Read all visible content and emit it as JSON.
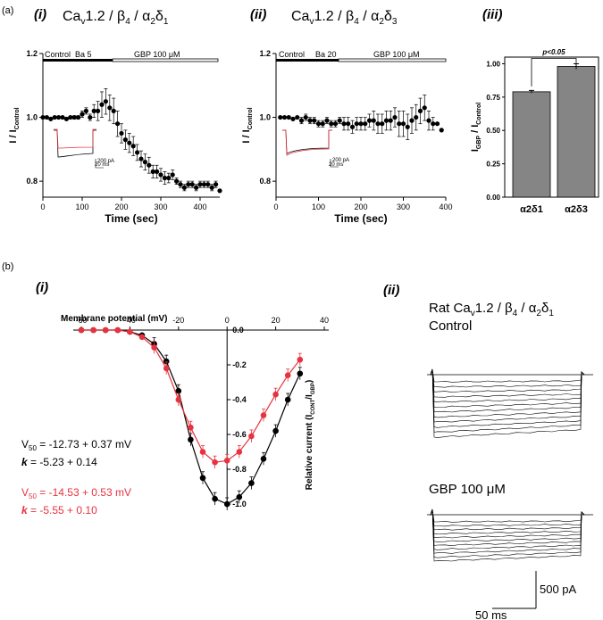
{
  "panel_labels": {
    "a": "(a)",
    "b": "(b)",
    "ai": "(i)",
    "aii": "(ii)",
    "aiii": "(iii)",
    "bi": "(i)",
    "bii": "(ii)"
  },
  "titles": {
    "ai_main": "Ca",
    "ai_sub": "v",
    "ai_rest": "1.2 / β",
    "ai_sub2": "4",
    "ai_rest2": " / α",
    "ai_sub3": "2",
    "ai_rest3": "δ",
    "ai_sub4": "1",
    "aii_main": "Ca",
    "aii_sub": "v",
    "aii_rest": "1.2 / β",
    "aii_sub2": "4",
    "aii_rest2": " / α",
    "aii_sub3": "2",
    "aii_rest3": "δ",
    "aii_sub4": "3",
    "bii_main": "Rat Ca",
    "bii_sub": "v",
    "bii_rest": "1.2 / β",
    "bii_sub2": "4",
    "bii_rest2": " / α",
    "bii_sub3": "2",
    "bii_rest3": "δ",
    "bii_sub4": "1"
  },
  "bars_ai": {
    "control": "Control",
    "ba": "Ba 5",
    "gbp": "GBP 100 μM"
  },
  "bars_aii": {
    "control": "Control",
    "ba": "Ba 20",
    "gbp": "GBP 100 μM"
  },
  "scale_labels": {
    "pa": "200 pA",
    "ms": "20 ms",
    "pa2": "500 pA",
    "ms2": "50 ms"
  },
  "bii_labels": {
    "control": "Control",
    "gbp": "GBP 100 μM"
  },
  "fit_text": {
    "black_v50": "V",
    "black_v50_sub": "50",
    "black_v50_val": " = -12.73 + 0.37  mV",
    "black_k": "k",
    "black_k_val": " =  -5.23 + 0.14",
    "red_v50": "V",
    "red_v50_sub": "50",
    "red_v50_val": " = -14.53 + 0.53  mV",
    "red_k": "k",
    "red_k_val": " = -5.55 + 0.10"
  },
  "colors": {
    "red": "#e8323f",
    "black": "#000000",
    "bar_gray": "#858585"
  },
  "chart_data": [
    {
      "type": "scatter",
      "xlabel": "Time (sec)",
      "ylabel": "I / I",
      "ylabel_sub": "Control",
      "xlim": [
        0,
        450
      ],
      "ylim": [
        0.75,
        1.2
      ],
      "xticks": [
        0,
        100,
        200,
        300,
        400
      ],
      "yticks": [
        0.8,
        1.0,
        1.2
      ],
      "x": [
        0,
        10,
        20,
        30,
        40,
        50,
        60,
        70,
        80,
        90,
        100,
        110,
        120,
        130,
        140,
        150,
        160,
        170,
        180,
        190,
        200,
        210,
        220,
        230,
        240,
        250,
        260,
        270,
        280,
        290,
        300,
        310,
        320,
        330,
        340,
        350,
        360,
        370,
        380,
        390,
        400,
        410,
        420,
        430,
        440,
        450
      ],
      "y": [
        1.0,
        1.0,
        0.995,
        1.0,
        1.0,
        1.0,
        0.995,
        1.0,
        1.0,
        1.0,
        1.01,
        1.02,
        1.0,
        1.02,
        1.02,
        1.04,
        1.05,
        1.03,
        1.02,
        0.98,
        0.95,
        0.93,
        0.92,
        0.91,
        0.89,
        0.87,
        0.86,
        0.85,
        0.83,
        0.83,
        0.82,
        0.81,
        0.81,
        0.82,
        0.8,
        0.79,
        0.78,
        0.79,
        0.79,
        0.78,
        0.79,
        0.79,
        0.79,
        0.78,
        0.79,
        0.77
      ],
      "err": [
        0,
        0,
        0,
        0,
        0,
        0,
        0,
        0,
        0.005,
        0.005,
        0.01,
        0.01,
        0.01,
        0.02,
        0.03,
        0.04,
        0.04,
        0.04,
        0.04,
        0.04,
        0.03,
        0.03,
        0.03,
        0.03,
        0.025,
        0.025,
        0.025,
        0.025,
        0.02,
        0.02,
        0.02,
        0.02,
        0.015,
        0.015,
        0.01,
        0.01,
        0.01,
        0.01,
        0.01,
        0.01,
        0.01,
        0.01,
        0.01,
        0.01,
        0.01,
        0
      ]
    },
    {
      "type": "scatter",
      "xlabel": "Time (sec)",
      "ylabel": "I / I",
      "ylabel_sub": "Control",
      "xlim": [
        0,
        400
      ],
      "ylim": [
        0.75,
        1.2
      ],
      "xticks": [
        0,
        100,
        200,
        300,
        400
      ],
      "yticks": [
        0.8,
        1.0,
        1.2
      ],
      "x": [
        10,
        20,
        30,
        40,
        50,
        60,
        70,
        80,
        90,
        100,
        110,
        120,
        130,
        140,
        150,
        160,
        170,
        180,
        190,
        200,
        210,
        220,
        230,
        240,
        250,
        260,
        270,
        280,
        290,
        300,
        310,
        320,
        330,
        340,
        350,
        360,
        370,
        380,
        390
      ],
      "y": [
        1.0,
        1.0,
        1.0,
        0.995,
        1.0,
        0.99,
        1.0,
        0.99,
        0.99,
        0.98,
        0.98,
        0.99,
        0.98,
        0.98,
        0.99,
        0.98,
        0.98,
        0.97,
        0.98,
        0.98,
        0.98,
        0.99,
        0.99,
        0.98,
        0.98,
        0.99,
        0.99,
        1.0,
        0.98,
        0.98,
        0.97,
        0.99,
        1.0,
        1.02,
        1.03,
        0.99,
        0.98,
        0.98,
        0.96
      ],
      "err": [
        0,
        0,
        0,
        0,
        0,
        0.01,
        0.01,
        0.01,
        0.01,
        0.01,
        0.01,
        0.01,
        0.01,
        0.01,
        0.01,
        0.02,
        0.02,
        0.02,
        0.02,
        0.02,
        0.02,
        0.02,
        0.03,
        0.03,
        0.03,
        0.03,
        0.03,
        0.03,
        0.04,
        0.04,
        0.04,
        0.04,
        0.04,
        0.04,
        0.04,
        0.03,
        0.02,
        0,
        0
      ]
    },
    {
      "type": "bar",
      "ylabel": "I",
      "ylabel_sub": "GBP",
      "ylabel_mid": " / I",
      "ylabel_sub2": "Control",
      "categories": [
        "α2δ1",
        "α2δ3"
      ],
      "values": [
        0.79,
        0.98
      ],
      "err": [
        0.01,
        0.02
      ],
      "ylim": [
        0,
        1.05
      ],
      "yticks": [
        0.0,
        0.25,
        0.5,
        0.75,
        1.0
      ],
      "ytick_labels": [
        "0.00",
        "0.25",
        "0.50",
        "0.75",
        "1.00"
      ],
      "annotation": "p<0.05"
    },
    {
      "type": "line",
      "xlabel": "Membrane potential (mV)",
      "ylabel": "Relative current (I",
      "ylabel_sub": "CONT",
      "ylabel_mid": "/I",
      "ylabel_sub2": "GBP",
      "ylabel_end": ")",
      "xlim": [
        -65,
        40
      ],
      "ylim": [
        -1.0,
        0.0
      ],
      "xticks": [
        -60,
        -40,
        -20,
        0,
        20,
        40
      ],
      "yticks": [
        0.0,
        -0.2,
        -0.4,
        -0.6,
        -0.8,
        -1.0
      ],
      "ytick_labels": [
        "0.0",
        "-0.2",
        "-0.4",
        "-0.6",
        "-0.8",
        "-1.0"
      ],
      "series": [
        {
          "color": "black",
          "x": [
            -60,
            -55,
            -50,
            -45,
            -40,
            -35,
            -30,
            -25,
            -20,
            -15,
            -10,
            -5,
            0,
            5,
            10,
            15,
            20,
            25,
            30
          ],
          "y": [
            0.0,
            0.0,
            0.0,
            0.0,
            -0.01,
            -0.03,
            -0.08,
            -0.18,
            -0.35,
            -0.63,
            -0.85,
            -0.97,
            -1.0,
            -0.96,
            -0.88,
            -0.74,
            -0.58,
            -0.4,
            -0.25
          ]
        },
        {
          "color": "red",
          "x": [
            -60,
            -55,
            -50,
            -45,
            -40,
            -35,
            -30,
            -25,
            -20,
            -15,
            -10,
            -5,
            0,
            5,
            10,
            15,
            20,
            25,
            30
          ],
          "y": [
            0.0,
            0.0,
            0.0,
            0.0,
            -0.01,
            -0.04,
            -0.1,
            -0.22,
            -0.4,
            -0.56,
            -0.7,
            -0.76,
            -0.75,
            -0.7,
            -0.61,
            -0.49,
            -0.37,
            -0.26,
            -0.17
          ]
        }
      ]
    }
  ]
}
